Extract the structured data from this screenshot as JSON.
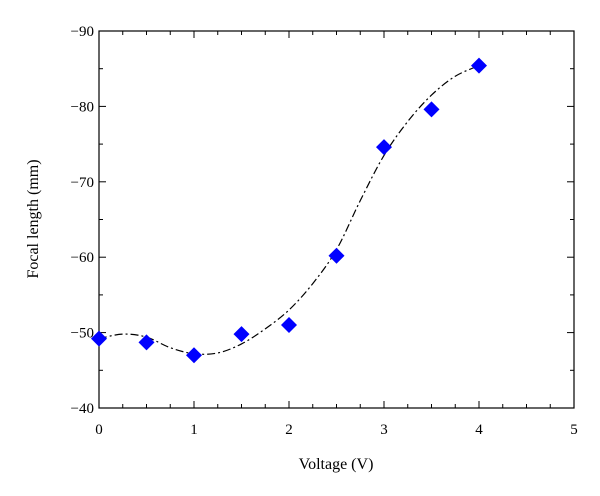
{
  "chart_data": {
    "type": "scatter",
    "title": "",
    "xlabel": "Voltage (V)",
    "ylabel": "Focal length (mm)",
    "xlim": [
      0,
      5
    ],
    "ylim": [
      -40,
      -90
    ],
    "y_axis_inverted": true,
    "x_ticks": [
      0,
      1,
      2,
      3,
      4,
      5
    ],
    "y_ticks": [
      -40,
      -50,
      -60,
      -70,
      -80,
      -90
    ],
    "x_tick_labels": [
      "0",
      "1",
      "2",
      "3",
      "4",
      "5"
    ],
    "y_tick_labels": [
      "−40",
      "−50",
      "−60",
      "−70",
      "−80",
      "−90"
    ],
    "grid": false,
    "legend": "none",
    "series": [
      {
        "marker": "diamond",
        "color": "#0000ff",
        "x": [
          0,
          0.5,
          1.0,
          1.5,
          2.0,
          2.5,
          3.0,
          3.5,
          4.0
        ],
        "y": [
          -49.2,
          -48.7,
          -47.0,
          -49.8,
          -51.0,
          -60.2,
          -74.6,
          -79.6,
          -85.4
        ]
      }
    ],
    "fit_curve": {
      "style": "dash-dot",
      "color": "#000000",
      "x": [
        0,
        0.25,
        0.5,
        0.75,
        1.0,
        1.25,
        1.5,
        1.75,
        2.0,
        2.25,
        2.5,
        2.75,
        3.0,
        3.25,
        3.5,
        3.75,
        4.0
      ],
      "y": [
        -49.2,
        -49.8,
        -49.4,
        -48.0,
        -47.2,
        -47.3,
        -48.5,
        -50.5,
        -53.0,
        -56.5,
        -61.0,
        -67.5,
        -73.5,
        -78.0,
        -81.5,
        -84.0,
        -85.4
      ]
    }
  }
}
